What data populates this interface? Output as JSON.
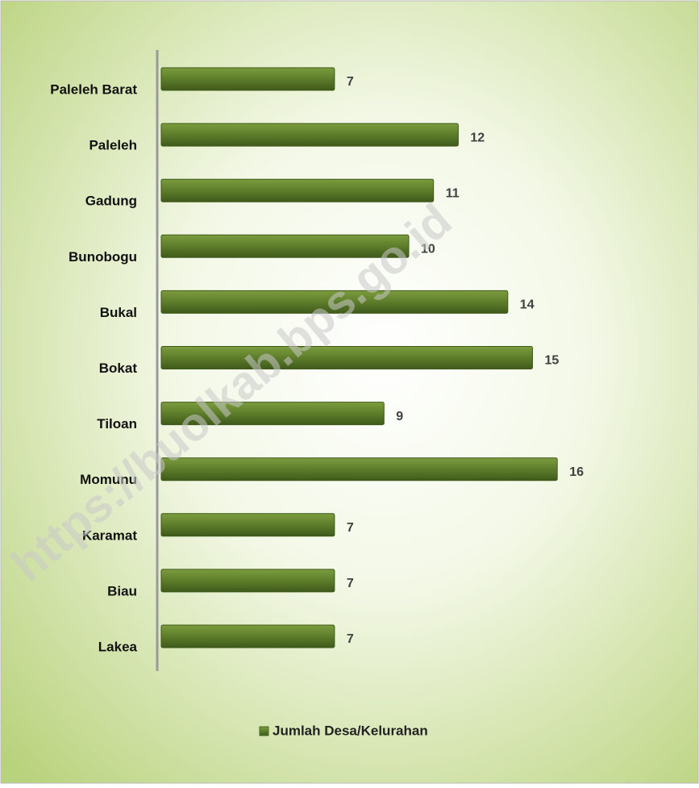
{
  "chart_data": {
    "type": "bar",
    "orientation": "horizontal",
    "categories": [
      "Paleleh Barat",
      "Paleleh",
      "Gadung",
      "Bunobogu",
      "Bukal",
      "Bokat",
      "Tiloan",
      "Momunu",
      "Karamat",
      "Biau",
      "Lakea"
    ],
    "series": [
      {
        "name": "Jumlah Desa/Kelurahan",
        "color": "#5e7d2b",
        "values": [
          7,
          12,
          11,
          10,
          14,
          15,
          9,
          16,
          7,
          7,
          7
        ]
      }
    ],
    "legend": "bottom",
    "watermark": "https://buolkab.bps.go.id"
  }
}
